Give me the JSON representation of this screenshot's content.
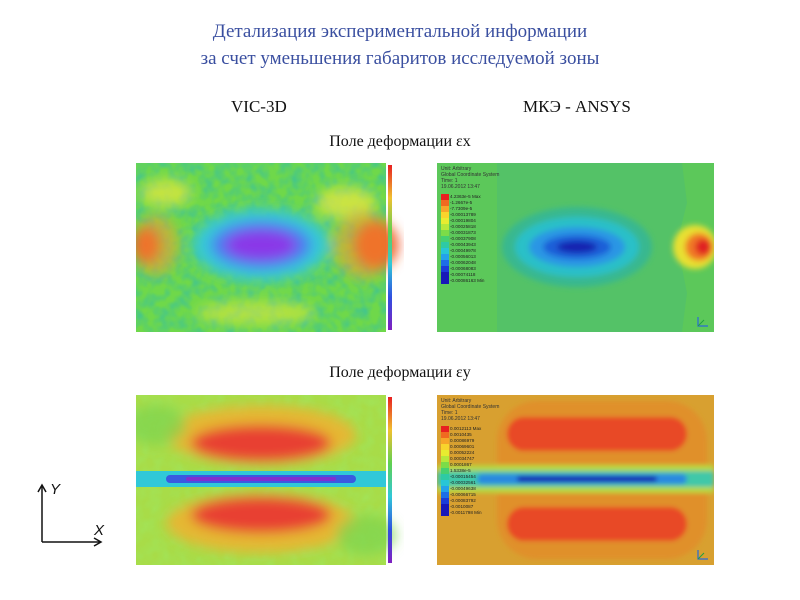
{
  "title": {
    "line1": "Детализация экспериментальной информации",
    "line2": "за счет уменьшения  габаритов  исследуемой зоны"
  },
  "columns": {
    "left": "VIC-3D",
    "right": "МКЭ - ANSYS"
  },
  "fields": {
    "x_label": "Поле деформации εx",
    "y_label": "Поле деформации εy"
  },
  "ansys": {
    "header_lines": [
      "Unit: Arbitrary",
      "Global Coordinate System",
      "Time: 1",
      "19.06.2012 13:47"
    ],
    "legend_x": {
      "max_label": "4.2363e-5 Max",
      "min_label": "-0.00086163 Min",
      "values": [
        "-1.2667e-5",
        "-7.7309e-5",
        "-0.00013789",
        "-0.00019804",
        "-0.00025818",
        "-0.00031873",
        "-0.00037908",
        "-0.00043943",
        "-0.00049978",
        "-0.00056013",
        "-0.00062048",
        "-0.00068083",
        "-0.00074118"
      ],
      "colors": [
        "#e82020",
        "#f06a20",
        "#f6a628",
        "#f8d42c",
        "#e8ec30",
        "#b8e83a",
        "#7cdc48",
        "#46d070",
        "#2ecaa4",
        "#28c6d6",
        "#24a2ea",
        "#1e6ee6",
        "#1c3cd8",
        "#1818b8"
      ]
    },
    "legend_y": {
      "max_label": "0.0012113 Max",
      "min_label": "-0.0011798 Min",
      "values": [
        "0.0010435",
        "0.00086979",
        "0.00069601",
        "0.00052224",
        "0.00034747",
        "0.0001867",
        "1.5338e-5",
        "-0.00015454",
        "-0.00032561",
        "-0.00049638",
        "-0.00066715",
        "-0.00083792",
        "-0.0010087"
      ],
      "colors": [
        "#e82020",
        "#f06a20",
        "#f6a628",
        "#f8d42c",
        "#e8ec30",
        "#b8e83a",
        "#7cdc48",
        "#46d070",
        "#2ecaa4",
        "#28c6d6",
        "#24a2ea",
        "#1e6ee6",
        "#1c3cd8",
        "#1818b8"
      ]
    }
  },
  "axes_icon": {
    "y": "Y",
    "x": "X"
  }
}
